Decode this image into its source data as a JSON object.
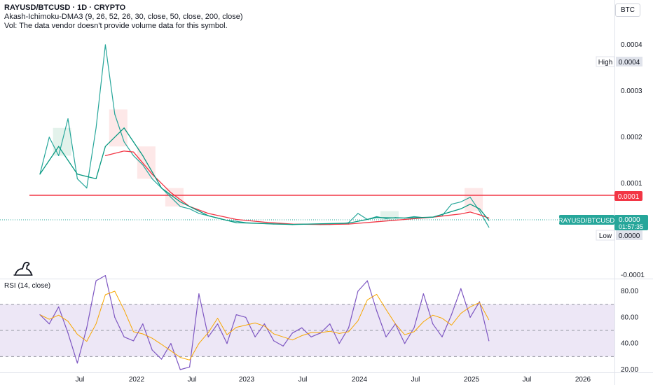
{
  "legend": {
    "title": "RAYUSD/BTCUSD · 1D · CRYPTO",
    "indicator": "Akash-Ichimoku-DMA3 (9, 26, 52, 26, 30, close, 50, close, 200, close)",
    "volume": "Vol: The data vendor doesn't provide volume data for this symbol."
  },
  "currency": "BTC",
  "rsi_label": "RSI (14, close)",
  "colors": {
    "price": "#26a69a",
    "ma_red": "#f23645",
    "ma_green": "#089981",
    "resistance": "#f23645",
    "rsi": "#7e57c2",
    "rsi_ma": "#f7a600",
    "rsi_band": "#ede7f6",
    "cloud_red": "#fde2e2",
    "cloud_green": "#dcefe6"
  },
  "chart_data": [
    {
      "type": "line",
      "title": "RAYUSD/BTCUSD · 1D · CRYPTO",
      "x_axis_ticks": [
        "Jul",
        "2022",
        "Jul",
        "2023",
        "Jul",
        "2024",
        "Jul",
        "2025",
        "Jul",
        "2026"
      ],
      "y_axis_ticks": [
        "0.0004",
        "0.0003",
        "0.0002",
        "0.0001",
        "-0.0001"
      ],
      "series": [
        {
          "name": "RAYUSD/BTCUSD",
          "x": [
            "2021-03",
            "2021-04",
            "2021-05",
            "2021-06",
            "2021-07",
            "2021-08",
            "2021-09",
            "2021-10",
            "2021-11",
            "2021-12",
            "2022-01",
            "2022-02",
            "2022-03",
            "2022-04",
            "2022-05",
            "2022-06",
            "2022-07",
            "2022-08",
            "2022-09",
            "2022-10",
            "2022-11",
            "2022-12",
            "2023-01",
            "2023-02",
            "2023-03",
            "2023-04",
            "2023-05",
            "2023-06",
            "2023-07",
            "2023-08",
            "2023-09",
            "2023-10",
            "2023-11",
            "2023-12",
            "2024-01",
            "2024-02",
            "2024-03",
            "2024-04",
            "2024-05",
            "2024-06",
            "2024-07",
            "2024-08",
            "2024-09",
            "2024-10",
            "2024-11",
            "2024-12",
            "2025-01",
            "2025-02",
            "2025-03"
          ],
          "values": [
            0.00012,
            0.0002,
            0.00016,
            0.00024,
            0.00011,
            9e-05,
            0.00022,
            0.0004,
            0.00025,
            0.00019,
            0.00016,
            0.00014,
            0.00011,
            9e-05,
            7e-05,
            5e-05,
            4.5e-05,
            3.5e-05,
            3e-05,
            2.5e-05,
            2e-05,
            1.8e-05,
            1.5e-05,
            1.4e-05,
            1.3e-05,
            1.2e-05,
            1.2e-05,
            1.1e-05,
            1.2e-05,
            1.2e-05,
            1.1e-05,
            1.1e-05,
            1.2e-05,
            1.5e-05,
            3.5e-05,
            2.2e-05,
            2.8e-05,
            2.4e-05,
            2.6e-05,
            2.5e-05,
            2.8e-05,
            2.6e-05,
            2.7e-05,
            3e-05,
            5.5e-05,
            6e-05,
            7e-05,
            4e-05,
            5e-06
          ]
        },
        {
          "name": "MA red",
          "x": [
            "2021-10",
            "2021-12",
            "2022-01",
            "2022-03",
            "2022-05",
            "2022-07",
            "2022-09",
            "2022-12",
            "2023-03",
            "2023-06",
            "2023-09",
            "2023-12",
            "2024-03",
            "2024-06",
            "2024-09",
            "2024-12",
            "2025-01",
            "2025-02",
            "2025-03"
          ],
          "values": [
            0.00016,
            0.00017,
            0.000168,
            0.00012,
            8e-05,
            5e-05,
            3.5e-05,
            2.2e-05,
            1.6e-05,
            1.2e-05,
            1.1e-05,
            1.2e-05,
            1.7e-05,
            2.2e-05,
            2.7e-05,
            3.4e-05,
            3.8e-05,
            3.2e-05,
            2.5e-05
          ]
        },
        {
          "name": "MA green",
          "x": [
            "2021-03",
            "2021-05",
            "2021-07",
            "2021-09",
            "2021-10",
            "2021-12",
            "2022-02",
            "2022-04",
            "2022-06",
            "2022-09",
            "2022-12",
            "2023-06",
            "2023-12",
            "2024-03",
            "2024-06",
            "2024-09",
            "2024-12",
            "2025-01",
            "2025-02",
            "2025-03"
          ],
          "values": [
            0.00012,
            0.00018,
            0.00012,
            0.00011,
            0.00018,
            0.00022,
            0.00016,
            9e-05,
            6e-05,
            3e-05,
            1.5e-05,
            1.1e-05,
            1.4e-05,
            2.6e-05,
            2.5e-05,
            2.7e-05,
            4.5e-05,
            5.5e-05,
            4.5e-05,
            2e-05
          ]
        }
      ],
      "horizontal_lines": [
        0.0001
      ],
      "price_labels": {
        "high_label": "High",
        "high_value": "0.0004",
        "resistance_value": "0.0001",
        "symbol": "RAYUSD/BTCUSD",
        "last_value": "0.0000",
        "countdown": "01:57:35",
        "low_label": "Low",
        "low_value": "0.0000"
      }
    },
    {
      "type": "line",
      "title": "RSI (14, close)",
      "y_axis_ticks": [
        "80.00",
        "60.00",
        "40.00",
        "20.00"
      ],
      "bands": [
        30,
        50,
        70
      ],
      "series": [
        {
          "name": "RSI",
          "x": [
            "2021-03",
            "2021-04",
            "2021-05",
            "2021-06",
            "2021-07",
            "2021-08",
            "2021-09",
            "2021-10",
            "2021-11",
            "2021-12",
            "2022-01",
            "2022-02",
            "2022-03",
            "2022-04",
            "2022-05",
            "2022-06",
            "2022-07",
            "2022-08",
            "2022-09",
            "2022-10",
            "2022-11",
            "2022-12",
            "2023-01",
            "2023-02",
            "2023-03",
            "2023-04",
            "2023-05",
            "2023-06",
            "2023-07",
            "2023-08",
            "2023-09",
            "2023-10",
            "2023-11",
            "2023-12",
            "2024-01",
            "2024-02",
            "2024-03",
            "2024-04",
            "2024-05",
            "2024-06",
            "2024-07",
            "2024-08",
            "2024-09",
            "2024-10",
            "2024-11",
            "2024-12",
            "2025-01",
            "2025-02",
            "2025-03"
          ],
          "values": [
            62,
            55,
            68,
            48,
            25,
            52,
            88,
            92,
            60,
            45,
            42,
            55,
            35,
            28,
            40,
            20,
            22,
            78,
            45,
            55,
            40,
            62,
            60,
            45,
            55,
            42,
            38,
            48,
            52,
            45,
            48,
            55,
            40,
            52,
            80,
            88,
            65,
            45,
            55,
            40,
            52,
            78,
            55,
            45,
            62,
            82,
            60,
            72,
            42
          ]
        }
      ]
    }
  ]
}
